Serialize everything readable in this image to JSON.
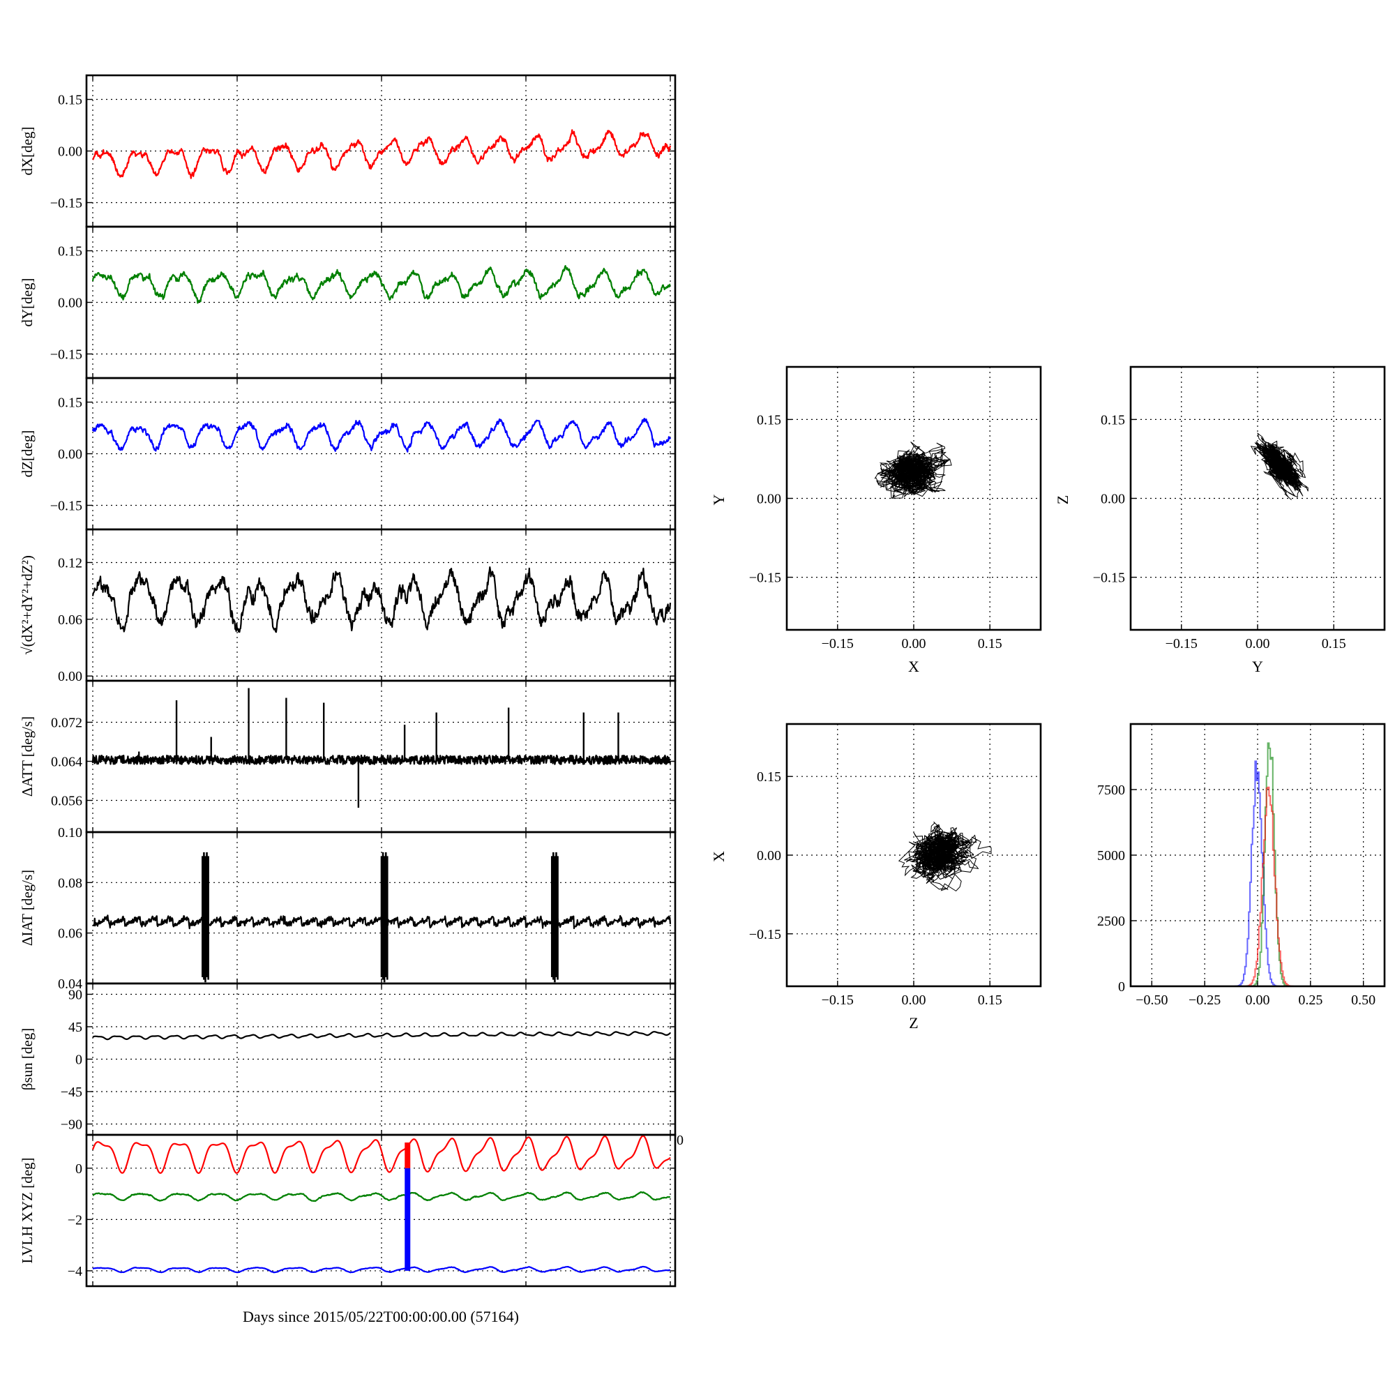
{
  "figure": {
    "xlabel": "Days since 2015/05/22T00:00:00.00 (57164)"
  },
  "chart_data": [
    {
      "id": "dx",
      "type": "line",
      "ylabel": "dX[deg]",
      "color": "#ff0000",
      "ylim": [
        -0.22,
        0.22
      ],
      "yticks": [
        0.15,
        0.0,
        -0.15
      ],
      "yticklabels": [
        "0.15",
        "0.00",
        "−0.15"
      ],
      "xlim": [
        0,
        1
      ],
      "grid": true,
      "series": [
        {
          "waveform": {
            "mean": -0.005,
            "slope": 0.055,
            "amp": 0.03,
            "cycles": 16,
            "noise": 0.009,
            "spikes": []
          }
        }
      ]
    },
    {
      "id": "dy",
      "type": "line",
      "ylabel": "dY[deg]",
      "color": "#008000",
      "ylim": [
        -0.22,
        0.22
      ],
      "yticks": [
        0.15,
        0.0,
        -0.15
      ],
      "yticklabels": [
        "0.15",
        "0.00",
        "−0.15"
      ],
      "xlim": [
        0,
        1
      ],
      "grid": true,
      "series": [
        {
          "waveform": {
            "mean": 0.055,
            "slope": 0.0,
            "amp": 0.03,
            "cycles": 15,
            "noise": 0.009,
            "spikes": []
          }
        }
      ]
    },
    {
      "id": "dz",
      "type": "line",
      "ylabel": "dZ[deg]",
      "color": "#0000ff",
      "ylim": [
        -0.22,
        0.22
      ],
      "yticks": [
        0.15,
        0.0,
        -0.15
      ],
      "yticklabels": [
        "0.15",
        "0.00",
        "−0.15"
      ],
      "xlim": [
        0,
        1
      ],
      "grid": true,
      "series": [
        {
          "waveform": {
            "mean": 0.055,
            "slope": 0.0,
            "amp": 0.03,
            "cycles": 16,
            "noise": 0.008,
            "spikes": []
          }
        }
      ]
    },
    {
      "id": "dr",
      "type": "line",
      "ylabel": "√(dX²+dY²+dZ²)",
      "color": "#000000",
      "ylim": [
        -0.005,
        0.155
      ],
      "yticks": [
        0.12,
        0.06,
        0.0
      ],
      "yticklabels": [
        "0.12",
        "0.06",
        "0.00"
      ],
      "xlim": [
        0,
        1
      ],
      "grid": true,
      "series": [
        {
          "waveform": {
            "mean": 0.08,
            "slope": 0.0,
            "amp": 0.02,
            "cycles": 15,
            "noise": 0.008,
            "spikes": []
          }
        }
      ]
    },
    {
      "id": "datt",
      "type": "line",
      "ylabel": "ΔATT [deg/s]",
      "color": "#000000",
      "ylim": [
        0.0495,
        0.0805
      ],
      "yticks": [
        0.072,
        0.064,
        0.056
      ],
      "yticklabels": [
        "0.072",
        "0.064",
        "0.056"
      ],
      "xlim": [
        0,
        1
      ],
      "grid": true,
      "series": [
        {
          "waveform": {
            "mean": 0.0643,
            "slope": 0.0,
            "amp": 0.0003,
            "cycles": 40,
            "noise": 0.0009,
            "spikes": [
              [
                0.08,
                0.066
              ],
              [
                0.145,
                0.0765
              ],
              [
                0.205,
                0.069
              ],
              [
                0.27,
                0.079
              ],
              [
                0.335,
                0.077
              ],
              [
                0.4,
                0.076
              ],
              [
                0.46,
                0.0545
              ],
              [
                0.54,
                0.0715
              ],
              [
                0.595,
                0.074
              ],
              [
                0.72,
                0.075
              ],
              [
                0.85,
                0.074
              ],
              [
                0.91,
                0.074
              ]
            ]
          }
        }
      ]
    },
    {
      "id": "diat",
      "type": "line",
      "ylabel": "ΔIAT [deg/s]",
      "color": "#000000",
      "ylim": [
        0.04,
        0.1
      ],
      "yticks": [
        0.1,
        0.08,
        0.06,
        0.04
      ],
      "yticklabels": [
        "0.10",
        "0.08",
        "0.06",
        "0.04"
      ],
      "xlim": [
        0,
        1
      ],
      "grid": true,
      "series": [
        {
          "waveform": {
            "mean": 0.0645,
            "slope": 0.0,
            "amp": 0.0015,
            "cycles": 36,
            "noise": 0.0006,
            "spikes": [],
            "bursts": [
              0.195,
              0.505,
              0.8
            ]
          }
        }
      ]
    },
    {
      "id": "beta",
      "type": "line",
      "ylabel": "βsun [deg]",
      "color": "#000000",
      "ylim": [
        -105,
        105
      ],
      "yticks": [
        90,
        45,
        0,
        -45,
        -90
      ],
      "yticklabels": [
        "90",
        "45",
        "0",
        "−45",
        "−90"
      ],
      "xlim": [
        0,
        1
      ],
      "grid": true,
      "series": [
        {
          "waveform": {
            "mean": 33,
            "slope": 6,
            "amp": 2,
            "cycles": 30,
            "noise": 0,
            "spikes": []
          }
        }
      ]
    },
    {
      "id": "lvlh",
      "type": "line",
      "ylabel": "LVLH XYZ [deg]",
      "color": "#000000",
      "ylim": [
        -4.6,
        1.3
      ],
      "yticks": [
        0,
        -2,
        -4
      ],
      "yticklabels": [
        "0",
        "−2",
        "−4"
      ],
      "topright_label": "0",
      "xlim": [
        0,
        1
      ],
      "grid": true,
      "series": [
        {
          "name": "",
          "color": "#ff0000",
          "waveform": {
            "mean": 0.55,
            "slope": 0,
            "amp": 0.55,
            "cycles": 15,
            "noise": 0,
            "spikes": []
          }
        },
        {
          "name": "",
          "color": "#008000",
          "waveform": {
            "mean": -1.1,
            "slope": 0,
            "amp": 0.12,
            "cycles": 15,
            "noise": 0.02,
            "spikes": []
          }
        },
        {
          "name": "",
          "color": "#0000ff",
          "waveform": {
            "mean": -3.95,
            "slope": 0,
            "amp": 0.08,
            "cycles": 15,
            "noise": 0.01,
            "spikes": []
          }
        }
      ],
      "bar": {
        "x": 0.545,
        "red": [
          0,
          1.0
        ],
        "blue": [
          -4.0,
          0
        ]
      }
    },
    {
      "id": "xy",
      "type": "scatter",
      "xlabel": "X",
      "ylabel": "Y",
      "xlim": [
        -0.25,
        0.25
      ],
      "ylim": [
        -0.25,
        0.25
      ],
      "ticks": [
        -0.15,
        0.0,
        0.15
      ],
      "ticklabels": [
        "−0.15",
        "0.00",
        "0.15"
      ],
      "grid": true,
      "cloud": {
        "cx": 0.0,
        "cy": 0.05,
        "sx": 0.024,
        "sy": 0.018,
        "rot": 0.1
      }
    },
    {
      "id": "yz",
      "type": "scatter",
      "xlabel": "Y",
      "ylabel": "Z",
      "xlim": [
        -0.25,
        0.25
      ],
      "ylim": [
        -0.25,
        0.25
      ],
      "ticks": [
        -0.15,
        0.0,
        0.15
      ],
      "ticklabels": [
        "−0.15",
        "0.00",
        "0.15"
      ],
      "grid": true,
      "cloud": {
        "cx": 0.05,
        "cy": 0.055,
        "sx": 0.025,
        "sy": 0.01,
        "rot": -0.85
      }
    },
    {
      "id": "zx",
      "type": "scatter",
      "xlabel": "Z",
      "ylabel": "X",
      "xlim": [
        -0.25,
        0.25
      ],
      "ylim": [
        -0.25,
        0.25
      ],
      "ticks": [
        -0.15,
        0.0,
        0.15
      ],
      "ticklabels": [
        "−0.15",
        "0.00",
        "0.15"
      ],
      "grid": true,
      "cloud": {
        "cx": 0.05,
        "cy": 0.0,
        "sx": 0.025,
        "sy": 0.02,
        "rot": 0.15
      }
    },
    {
      "id": "hist",
      "type": "histogram",
      "xlim": [
        -0.6,
        0.6
      ],
      "ylim": [
        0,
        10000
      ],
      "xticks": [
        -0.5,
        -0.25,
        0.0,
        0.25,
        0.5
      ],
      "xticklabels": [
        "−0.50",
        "−0.25",
        "0.00",
        "0.25",
        "0.50"
      ],
      "yticks": [
        7500,
        5000,
        2500,
        0
      ],
      "yticklabels": [
        "7500",
        "5000",
        "2500",
        "0"
      ],
      "grid": true,
      "series": [
        {
          "name": "",
          "color": "#0000ff",
          "center": -0.005,
          "sigma": 0.025,
          "peak": 8400
        },
        {
          "name": "",
          "color": "#008000",
          "center": 0.055,
          "sigma": 0.022,
          "peak": 9200
        },
        {
          "name": "",
          "color": "#ff0000",
          "center": 0.05,
          "sigma": 0.028,
          "peak": 7400
        }
      ]
    }
  ]
}
